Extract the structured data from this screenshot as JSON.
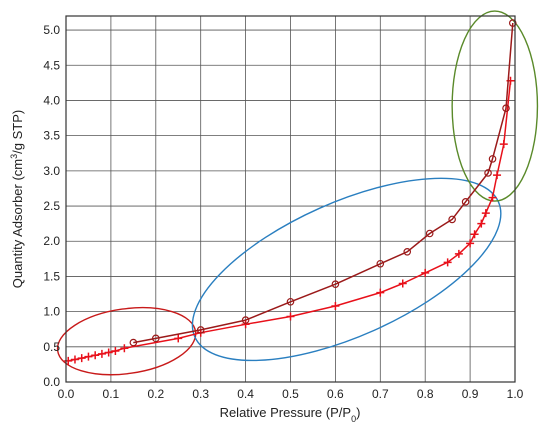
{
  "chart_data": {
    "type": "line",
    "xlabel": "Relative Pressure (P/P",
    "xlabel_sub": "0",
    "xlabel_end": ")",
    "ylabel": "Quantity Adsorber (cm",
    "ylabel_sup": "3",
    "ylabel_end": "/g STP)",
    "xlim": [
      0.0,
      1.0
    ],
    "ylim": [
      0.0,
      5.2
    ],
    "grid": true,
    "legend": "none",
    "x_ticks": [
      "0.0",
      "0.1",
      "0.2",
      "0.3",
      "0.4",
      "0.5",
      "0.6",
      "0.7",
      "0.8",
      "0.9",
      "1.0"
    ],
    "y_ticks": [
      "0.0",
      "0.5",
      "1.0",
      "1.5",
      "2.0",
      "2.5",
      "3.0",
      "3.5",
      "4.0",
      "4.5",
      "5.0"
    ],
    "series": [
      {
        "marker": "plus",
        "color": "#e8101a",
        "x": [
          0.005,
          0.02,
          0.035,
          0.05,
          0.065,
          0.08,
          0.095,
          0.11,
          0.13,
          0.25,
          0.3,
          0.4,
          0.5,
          0.6,
          0.7,
          0.75,
          0.8,
          0.85,
          0.875,
          0.9,
          0.91,
          0.925,
          0.935,
          0.95,
          0.96,
          0.975,
          0.99
        ],
        "y": [
          0.3,
          0.32,
          0.34,
          0.36,
          0.38,
          0.4,
          0.42,
          0.44,
          0.48,
          0.62,
          0.7,
          0.82,
          0.93,
          1.08,
          1.27,
          1.4,
          1.55,
          1.7,
          1.82,
          1.97,
          2.1,
          2.25,
          2.4,
          2.62,
          2.94,
          3.38,
          4.28
        ]
      },
      {
        "marker": "circle",
        "color": "#9b1a1a",
        "x": [
          0.15,
          0.2,
          0.3,
          0.4,
          0.5,
          0.6,
          0.7,
          0.76,
          0.81,
          0.86,
          0.89,
          0.94,
          0.95,
          0.98,
          0.995
        ],
        "y": [
          0.56,
          0.62,
          0.74,
          0.88,
          1.14,
          1.39,
          1.68,
          1.85,
          2.11,
          2.31,
          2.56,
          2.97,
          3.17,
          3.89,
          5.1
        ]
      }
    ],
    "annotations": [
      {
        "shape": "ellipse",
        "color": "#c81a1a",
        "cx": 0.135,
        "cy": 0.58,
        "rx_units": 0.155,
        "ry_units": 0.46,
        "rotation_deg": -8
      },
      {
        "shape": "ellipse",
        "color": "#2a7fc0",
        "cx": 0.625,
        "cy": 1.6,
        "rx_units": 0.37,
        "ry_units": 0.95,
        "rotation_deg": -24
      },
      {
        "shape": "ellipse",
        "color": "#5a8a2a",
        "cx": 0.955,
        "cy": 3.92,
        "rx_units": 0.095,
        "ry_units": 1.35,
        "rotation_deg": 0
      }
    ]
  }
}
